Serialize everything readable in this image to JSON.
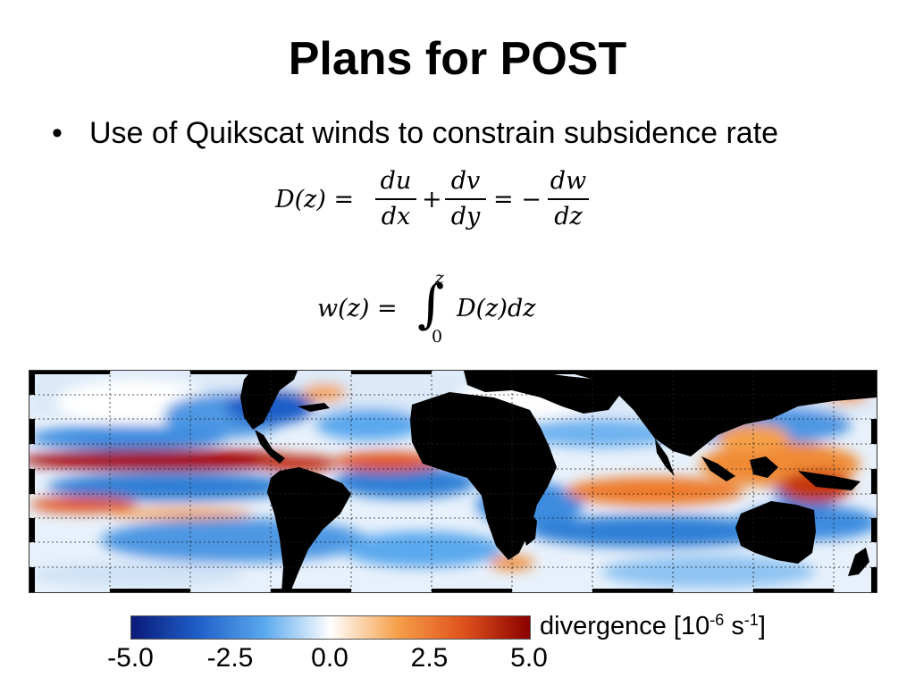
{
  "slide": {
    "title": "Plans for POST",
    "bullet_marker": "•",
    "bullet_text": "Use of Quikscat winds to constrain subsidence rate"
  },
  "equations": {
    "divergence": {
      "lhs": "D(z) =",
      "frac1_num": "du",
      "frac1_den": "dx",
      "plus": "+",
      "frac2_num": "dv",
      "frac2_den": "dy",
      "equals_minus": "= −",
      "frac3_num": "dw",
      "frac3_den": "dz"
    },
    "omega": {
      "lhs": "w(z) =",
      "integral_sign": "∫",
      "upper_limit": "z",
      "lower_limit": "0",
      "integrand": "D(z)dz"
    }
  },
  "figure": {
    "map_description_colors": {
      "land": "#000000",
      "strong_convergence": "#08306b",
      "convergence": "#2f7fd6",
      "neutral": "#ffffff",
      "divergence": "#f07a1e",
      "strong_divergence": "#8b0000"
    }
  },
  "colorbar": {
    "label_prefix": "divergence [10",
    "label_exp1": "-6",
    "label_mid": " s",
    "label_exp2": "-1",
    "label_suffix": "]",
    "ticks": [
      "-5.0",
      "-2.5",
      "0.0",
      "2.5",
      "5.0"
    ],
    "tick_values": [
      -5.0,
      -2.5,
      0.0,
      2.5,
      5.0
    ],
    "range": [
      -5.0,
      5.0
    ],
    "colors": [
      "#0a1a7a",
      "#1f5fc8",
      "#5aa8ee",
      "#ffffff",
      "#f6a04a",
      "#e0521c",
      "#8b0000"
    ]
  }
}
